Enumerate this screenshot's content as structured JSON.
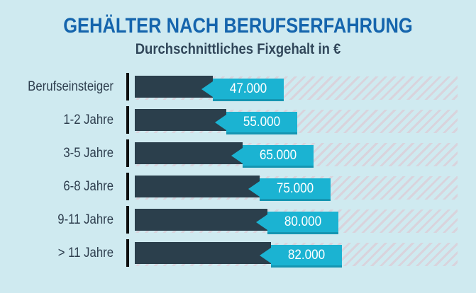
{
  "header": {
    "title": "GEHÄLTER NACH BERUFSERFAHRUNG",
    "subtitle": "Durchschnittliches Fixgehalt in €"
  },
  "chart_data": {
    "type": "bar",
    "orientation": "horizontal",
    "title": "GEHÄLTER NACH BERUFSERFAHRUNG",
    "subtitle": "Durchschnittliches Fixgehalt in €",
    "categories": [
      "Berufseinsteiger",
      "1-2 Jahre",
      "3-5 Jahre",
      "6-8 Jahre",
      "9-11 Jahre",
      "> 11 Jahre"
    ],
    "values": [
      47000,
      55000,
      65000,
      75000,
      80000,
      82000
    ],
    "value_labels": [
      "47.000",
      "55.000",
      "65.000",
      "75.000",
      "80.000",
      "82.000"
    ],
    "unit": "€",
    "grid": false,
    "legend": false
  },
  "colors": {
    "background": "#cfeaf0",
    "title": "#1565ad",
    "subtitle": "#31475a",
    "label_text": "#2e3e4e",
    "tick": "#0d0d0d",
    "bar": "#2b3f4c",
    "value_box": "#1bb3d2",
    "value_box_edge": "#1595b1",
    "value_text": "#ffffff",
    "hatch_stripe": "#d9d3dc"
  }
}
